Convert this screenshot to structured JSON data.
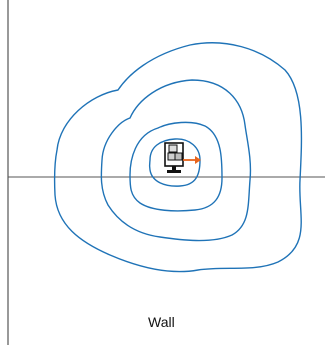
{
  "labels": {
    "wall": "Wall"
  },
  "colors": {
    "contour": "#1f73b7",
    "arrow": "#e8651e",
    "lines": "#555555",
    "device": "#111111"
  },
  "icons": {
    "device": "server-robot-icon",
    "arrow": "arrow-right-icon"
  }
}
